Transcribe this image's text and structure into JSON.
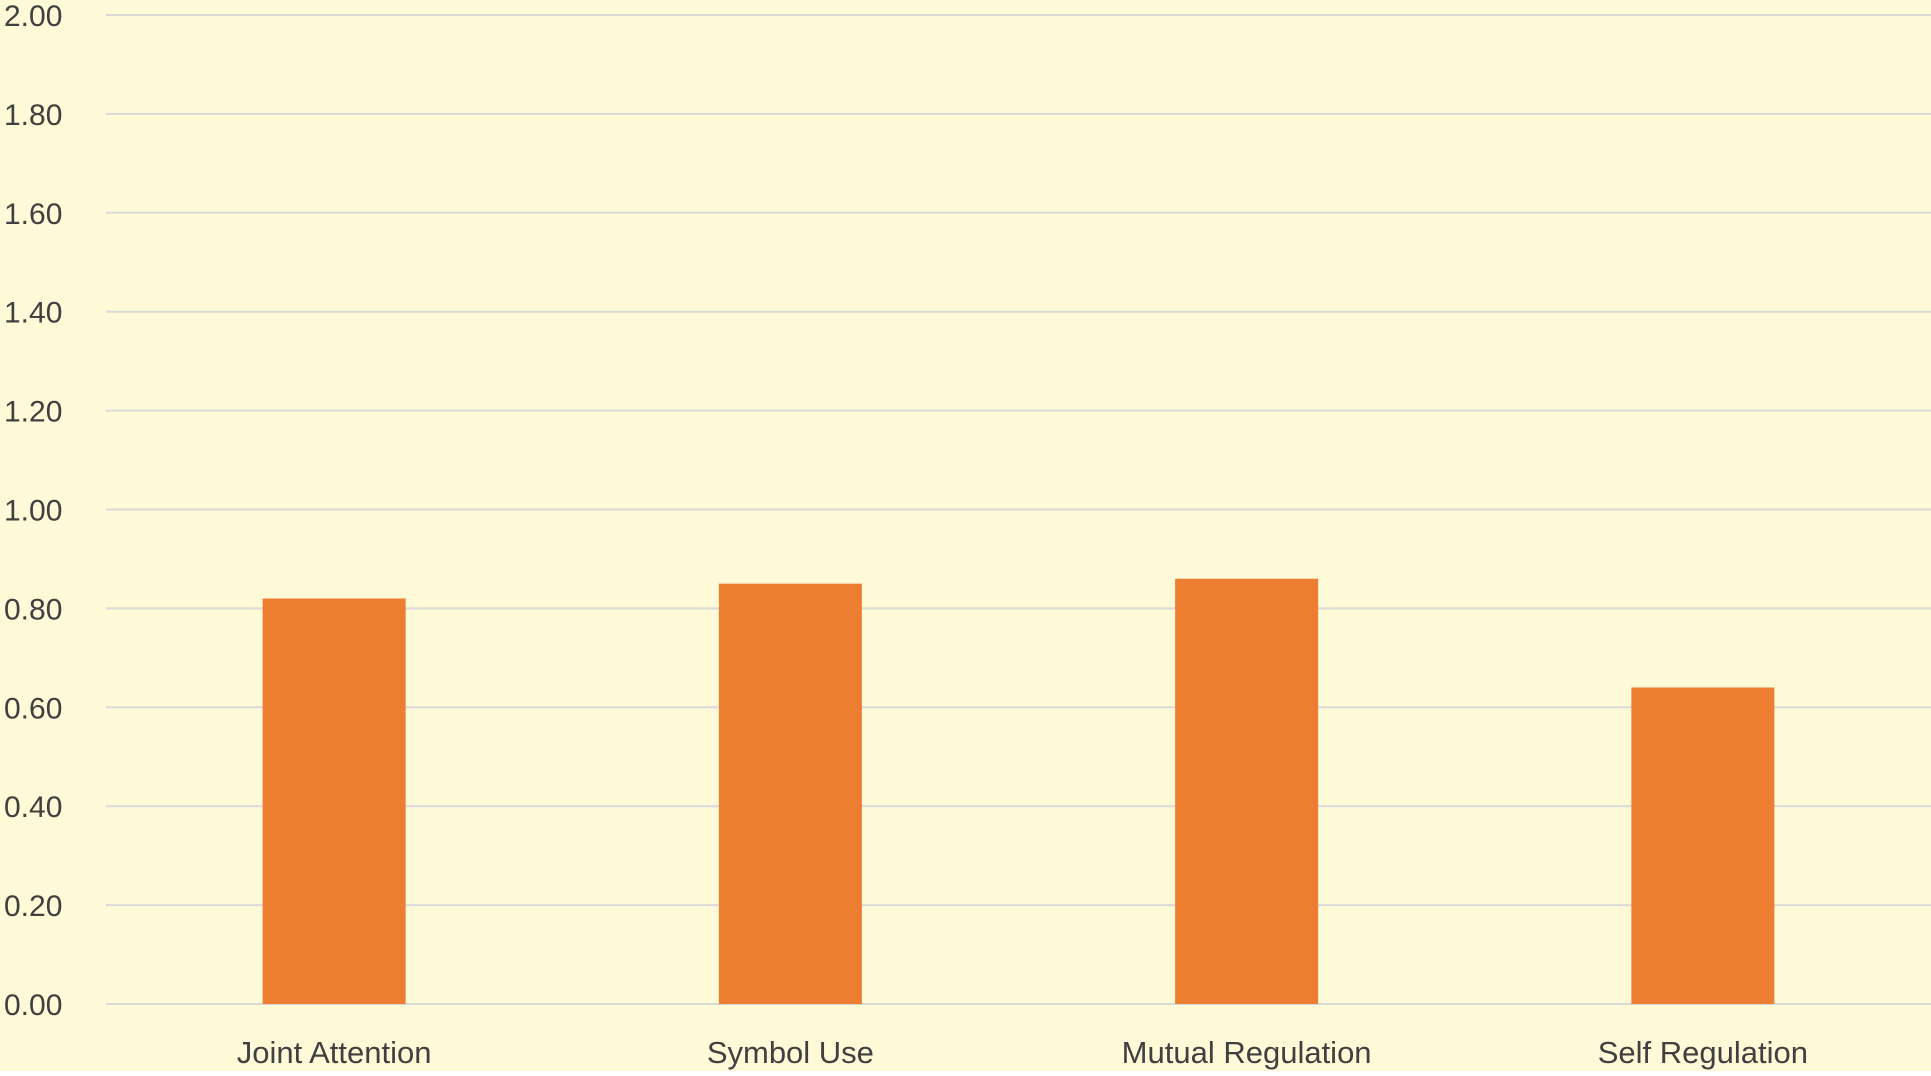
{
  "colors": {
    "background": "#FEF9D7",
    "bar": "#ED7D31",
    "gridline": "#D9D9D9",
    "text": "#404040"
  },
  "chart_data": {
    "type": "bar",
    "title": "",
    "xlabel": "",
    "ylabel": "",
    "categories": [
      "Joint Attention",
      "Symbol Use",
      "Mutual Regulation",
      "Self Regulation"
    ],
    "values": [
      0.82,
      0.85,
      0.86,
      0.64
    ],
    "ylim": [
      0,
      2
    ],
    "yticks": [
      "0.00",
      "0.20",
      "0.40",
      "0.60",
      "0.80",
      "1.00",
      "1.20",
      "1.40",
      "1.60",
      "1.80",
      "2.00"
    ],
    "grid": true,
    "legend": "none"
  }
}
